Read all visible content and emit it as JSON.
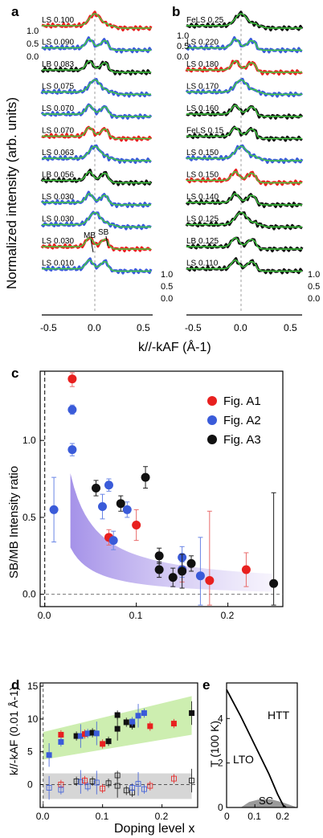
{
  "panels": {
    "a": {
      "label": "a",
      "rows": [
        "LS 0.100",
        "LS 0.090",
        "LB 0.083",
        "LS 0.075",
        "LS 0.070",
        "LS 0.070",
        "LS 0.063",
        "LB 0.056",
        "LS 0.030",
        "LS 0.030",
        "LS 0.030",
        "LS 0.010"
      ],
      "colors": [
        "red",
        "blue",
        "black",
        "blue",
        "blue",
        "red",
        "blue",
        "black",
        "blue",
        "blue",
        "red",
        "blue"
      ],
      "scale_ticks": [
        "1.0",
        "0.5",
        "0.0"
      ],
      "scale_ticks_bottom": [
        "1.0",
        "0.5",
        "0.0"
      ],
      "annot_mb": "MB",
      "annot_sb": "SB",
      "xticks": [
        "-0.5",
        "0.0",
        "0.5"
      ]
    },
    "b": {
      "label": "b",
      "rows": [
        "FeLS 0.25",
        "LS 0.220",
        "LS 0.180",
        "LS 0.170",
        "LS 0.160",
        "FeLS 0.15",
        "LS 0.150",
        "LS 0.150",
        "LS 0.140",
        "LS 0.125",
        "LB 0.125",
        "LS 0.110"
      ],
      "colors": [
        "black",
        "blue",
        "red",
        "blue",
        "black",
        "black",
        "blue",
        "red",
        "black",
        "black",
        "black",
        "black"
      ],
      "scale_ticks": [
        "1.0",
        "0.5",
        "0.0"
      ],
      "xticks": [
        "-0.5",
        "0.0",
        "0.5"
      ]
    },
    "ab_ylabel": "Normalized intensity (arb. units)",
    "ab_xlabel": "k//-kAF (Å-1)",
    "c": {
      "label": "c",
      "ylabel": "SB/MB Intensity ratio",
      "yticks": [
        "0.0",
        "0.5",
        "1.0"
      ],
      "xticks": [
        "0.0",
        "0.1",
        "0.2"
      ]
    },
    "d": {
      "label": "d",
      "ylabel": "k//-kAF (0.01 Å-1)",
      "yticks": [
        "15",
        "10",
        "5",
        "0"
      ],
      "xticks": [
        "0.0",
        "0.1",
        "0.2"
      ]
    },
    "e": {
      "label": "e",
      "ylabel": "T (100 K)",
      "yticks": [
        "4",
        "2",
        "0"
      ],
      "xticks": [
        "0",
        "0.1",
        "0.2"
      ],
      "htt": "HTT",
      "lto": "LTO",
      "sc": "SC"
    },
    "de_xlabel": "Doping level x"
  },
  "colors": {
    "red": "#e8201f",
    "blue": "#3a5bd9",
    "black": "#111111",
    "fit": "#3fcf3f",
    "band_c": "#b9a8ee",
    "band_d_green": "#cdeeb0",
    "band_d_gray": "#d6d6d6",
    "sc_gray": "#9a9a9a"
  },
  "chart_data": [
    {
      "type": "scatter",
      "panel": "c",
      "ylabel": "SB/MB Intensity ratio",
      "xlim": [
        -0.005,
        0.26
      ],
      "ylim": [
        -0.08,
        1.45
      ],
      "legend": "top-right",
      "series": [
        {
          "name": "Fig. A1",
          "color": "red",
          "points": [
            [
              0.03,
              1.4,
              0.05
            ],
            [
              0.07,
              0.37,
              0.05
            ],
            [
              0.1,
              0.45,
              0.1
            ],
            [
              0.15,
              0.16,
              0.08
            ],
            [
              0.18,
              0.09,
              0.45
            ],
            [
              0.22,
              0.16,
              0.11
            ]
          ]
        },
        {
          "name": "Fig. A2",
          "color": "blue",
          "points": [
            [
              0.01,
              0.55,
              0.21
            ],
            [
              0.03,
              1.2,
              0.03
            ],
            [
              0.03,
              0.94,
              0.04
            ],
            [
              0.063,
              0.57,
              0.08
            ],
            [
              0.07,
              0.71,
              0.04
            ],
            [
              0.075,
              0.35,
              0.06
            ],
            [
              0.09,
              0.55,
              0.05
            ],
            [
              0.15,
              0.24,
              0.07
            ],
            [
              0.15,
              0.16,
              0.05
            ],
            [
              0.17,
              0.12,
              0.25
            ]
          ]
        },
        {
          "name": "Fig. A3",
          "color": "black",
          "points": [
            [
              0.056,
              0.69,
              0.05
            ],
            [
              0.083,
              0.59,
              0.05
            ],
            [
              0.11,
              0.76,
              0.07
            ],
            [
              0.125,
              0.25,
              0.05
            ],
            [
              0.125,
              0.16,
              0.05
            ],
            [
              0.14,
              0.11,
              0.06
            ],
            [
              0.15,
              0.15,
              0.11
            ],
            [
              0.16,
              0.2,
              0.05
            ],
            [
              0.25,
              0.07,
              0.59
            ]
          ]
        }
      ]
    },
    {
      "type": "scatter",
      "panel": "d",
      "ylabel": "k//-kAF (0.01 Å-1)",
      "xlim": [
        -0.005,
        0.26
      ],
      "ylim": [
        -3.5,
        15.5
      ],
      "series": [
        {
          "name": "SB",
          "filled": true,
          "points": [
            [
              0.01,
              4.5,
              "blue"
            ],
            [
              0.03,
              7.6,
              "red"
            ],
            [
              0.03,
              6.5,
              "blue"
            ],
            [
              0.056,
              7.4,
              "black"
            ],
            [
              0.063,
              7.4,
              "blue"
            ],
            [
              0.07,
              7.7,
              "red"
            ],
            [
              0.075,
              7.8,
              "blue"
            ],
            [
              0.083,
              7.9,
              "black"
            ],
            [
              0.09,
              7.8,
              "blue"
            ],
            [
              0.1,
              6.2,
              "red"
            ],
            [
              0.11,
              6.6,
              "black"
            ],
            [
              0.125,
              10.6,
              "black"
            ],
            [
              0.125,
              8.5,
              "black"
            ],
            [
              0.14,
              9.5,
              "black"
            ],
            [
              0.15,
              9.1,
              "black"
            ],
            [
              0.15,
              9.6,
              "blue"
            ],
            [
              0.16,
              10.5,
              "blue"
            ],
            [
              0.17,
              10.9,
              "blue"
            ],
            [
              0.18,
              8.9,
              "red"
            ],
            [
              0.22,
              9.3,
              "red"
            ],
            [
              0.25,
              10.9,
              "black"
            ]
          ]
        },
        {
          "name": "MB",
          "filled": false,
          "points": [
            [
              0.01,
              -0.5,
              "blue"
            ],
            [
              0.03,
              0.0,
              "red"
            ],
            [
              0.03,
              -0.8,
              "blue"
            ],
            [
              0.056,
              0.5,
              "black"
            ],
            [
              0.063,
              0.4,
              "blue"
            ],
            [
              0.07,
              0.6,
              "red"
            ],
            [
              0.075,
              -0.3,
              "blue"
            ],
            [
              0.083,
              0.5,
              "black"
            ],
            [
              0.09,
              0.3,
              "blue"
            ],
            [
              0.1,
              -0.6,
              "red"
            ],
            [
              0.11,
              0.2,
              "black"
            ],
            [
              0.125,
              1.4,
              "black"
            ],
            [
              0.125,
              -0.2,
              "black"
            ],
            [
              0.14,
              -0.9,
              "black"
            ],
            [
              0.15,
              -1.2,
              "black"
            ],
            [
              0.15,
              -0.5,
              "blue"
            ],
            [
              0.16,
              0.1,
              "blue"
            ],
            [
              0.17,
              -0.7,
              "blue"
            ],
            [
              0.18,
              -0.2,
              "red"
            ],
            [
              0.22,
              0.9,
              "red"
            ],
            [
              0.25,
              0.6,
              "black"
            ]
          ]
        }
      ]
    },
    {
      "type": "line",
      "panel": "e",
      "ylabel": "T (100 K)",
      "xlim": [
        0,
        0.25
      ],
      "ylim": [
        0,
        5.6
      ],
      "series": [
        {
          "name": "LTO/HTT boundary",
          "points": [
            [
              0,
              5.3
            ],
            [
              0.05,
              4.1
            ],
            [
              0.1,
              2.8
            ],
            [
              0.15,
              1.5
            ],
            [
              0.18,
              0.6
            ],
            [
              0.2,
              0.1
            ],
            [
              0.21,
              0
            ]
          ]
        }
      ],
      "sc_dome": [
        [
          0.05,
          0
        ],
        [
          0.08,
          0.25
        ],
        [
          0.12,
          0.38
        ],
        [
          0.16,
          0.36
        ],
        [
          0.2,
          0.22
        ],
        [
          0.25,
          0
        ]
      ]
    }
  ]
}
